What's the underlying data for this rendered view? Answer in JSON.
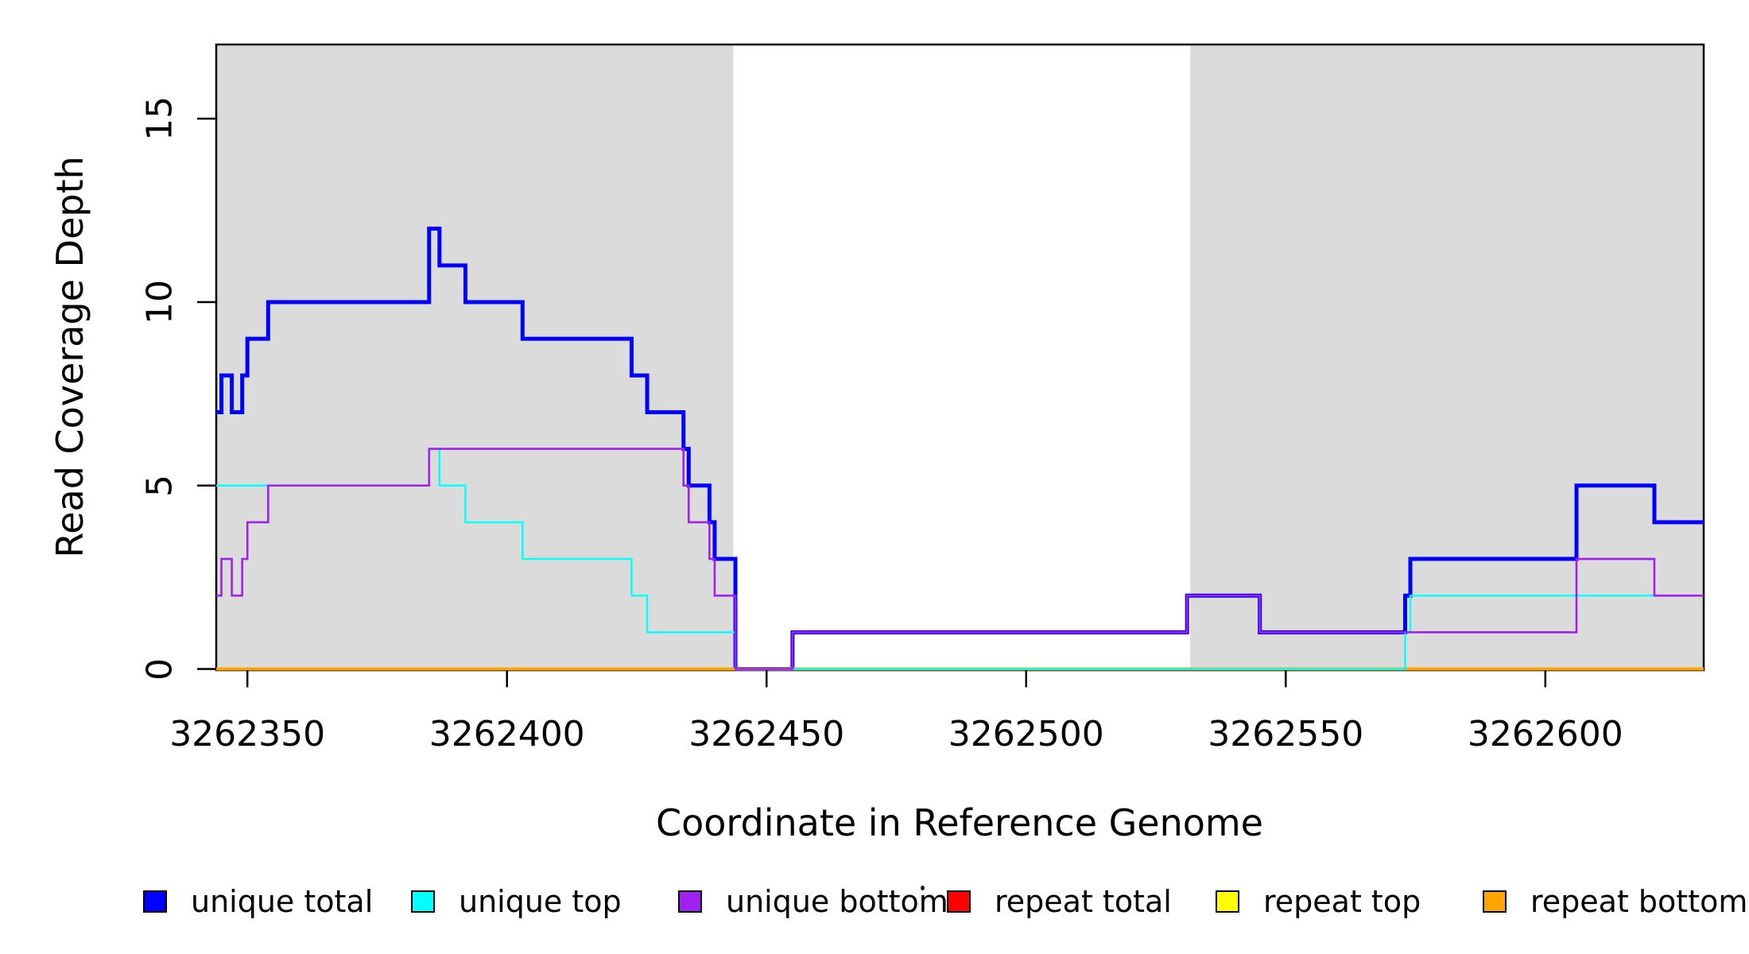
{
  "figure": {
    "background_color": "#FFFFFF",
    "plot_border_color": "#000000"
  },
  "axes": {
    "x_label": "Coordinate in Reference Genome",
    "y_label": "Read Coverage Depth",
    "x_ticks": [
      3262350,
      3262400,
      3262450,
      3262500,
      3262550,
      3262600
    ],
    "y_ticks": [
      0,
      5,
      10,
      15
    ]
  },
  "legend": {
    "items": [
      {
        "label": "unique total",
        "color": "#0000FF"
      },
      {
        "label": "unique top",
        "color": "#00FFFF"
      },
      {
        "label": "unique bottom",
        "color": "#A020F0"
      },
      {
        "label": "repeat total",
        "color": "#FF0000"
      },
      {
        "label": "repeat top",
        "color": "#FFFF00"
      },
      {
        "label": "repeat bottom",
        "color": "#FFA500"
      }
    ],
    "stray_mark_color": "#1A1A1A"
  },
  "chart_data": {
    "type": "line",
    "subtype": "step",
    "title": "",
    "xlabel": "Coordinate in Reference Genome",
    "ylabel": "Read Coverage Depth",
    "x_range": [
      3262344,
      3262630.5
    ],
    "y_range": [
      0,
      17.02
    ],
    "x_tick_values": [
      3262350,
      3262400,
      3262450,
      3262500,
      3262550,
      3262600
    ],
    "y_tick_values": [
      0,
      5,
      10,
      15
    ],
    "grid": false,
    "legend_position": "bottom-horizontal",
    "shade_color": "#DBDBDB",
    "shaded_regions": [
      [
        3262344,
        3262443.6
      ],
      [
        3262531.6,
        3262630.5
      ]
    ],
    "series": [
      {
        "name": "unique total",
        "color": "#0000FF",
        "line_width": 5,
        "steps": [
          [
            3262344,
            7
          ],
          [
            3262345,
            8
          ],
          [
            3262347,
            7
          ],
          [
            3262349,
            8
          ],
          [
            3262350,
            9
          ],
          [
            3262354,
            10
          ],
          [
            3262385,
            12
          ],
          [
            3262387,
            11
          ],
          [
            3262392,
            10
          ],
          [
            3262403,
            9
          ],
          [
            3262424,
            8
          ],
          [
            3262427,
            7
          ],
          [
            3262434,
            6
          ],
          [
            3262435,
            5
          ],
          [
            3262439,
            4
          ],
          [
            3262440,
            3
          ],
          [
            3262444,
            0
          ],
          [
            3262455,
            1
          ],
          [
            3262531,
            2
          ],
          [
            3262545,
            1
          ],
          [
            3262573,
            2
          ],
          [
            3262574,
            3
          ],
          [
            3262606,
            5
          ],
          [
            3262621,
            4
          ]
        ]
      },
      {
        "name": "repeat total",
        "color": "#FF0000",
        "line_width": 2.5,
        "steps": [
          [
            3262344,
            0
          ]
        ]
      },
      {
        "name": "repeat top",
        "color": "#FFFF00",
        "line_width": 2.5,
        "steps": [
          [
            3262344,
            0
          ]
        ]
      },
      {
        "name": "repeat bottom",
        "color": "#FFA500",
        "line_width": 4,
        "steps": [
          [
            3262344,
            0
          ]
        ]
      },
      {
        "name": "unique top",
        "color": "#00FFFF",
        "line_width": 2.4,
        "steps": [
          [
            3262344,
            5
          ],
          [
            3262385,
            6
          ],
          [
            3262387,
            5
          ],
          [
            3262392,
            4
          ],
          [
            3262403,
            3
          ],
          [
            3262424,
            2
          ],
          [
            3262427,
            1
          ],
          [
            3262444,
            0
          ],
          [
            3262573,
            1
          ],
          [
            3262574,
            2
          ]
        ]
      },
      {
        "name": "unique bottom",
        "color": "#A020F0",
        "line_width": 2.6,
        "steps": [
          [
            3262344,
            2
          ],
          [
            3262345,
            3
          ],
          [
            3262347,
            2
          ],
          [
            3262349,
            3
          ],
          [
            3262350,
            4
          ],
          [
            3262354,
            5
          ],
          [
            3262385,
            6
          ],
          [
            3262434,
            5
          ],
          [
            3262435,
            4
          ],
          [
            3262439,
            3
          ],
          [
            3262440,
            2
          ],
          [
            3262444,
            0
          ],
          [
            3262455,
            1
          ],
          [
            3262531,
            2
          ],
          [
            3262545,
            1
          ],
          [
            3262606,
            3
          ],
          [
            3262621,
            2
          ]
        ]
      }
    ]
  }
}
